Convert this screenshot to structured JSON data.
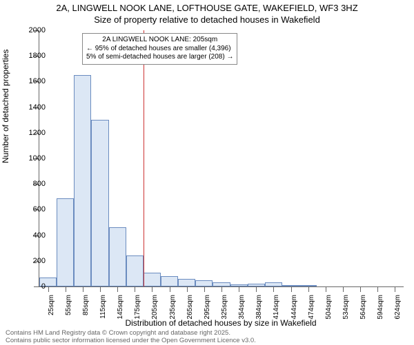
{
  "title_line1": "2A, LINGWELL NOOK LANE, LOFTHOUSE GATE, WAKEFIELD, WF3 3HZ",
  "title_line2": "Size of property relative to detached houses in Wakefield",
  "y_axis_label": "Number of detached properties",
  "x_axis_label": "Distribution of detached houses by size in Wakefield",
  "footer_line1": "Contains HM Land Registry data © Crown copyright and database right 2025.",
  "footer_line2": "Contains public sector information licensed under the Open Government Licence v3.0.",
  "chart": {
    "type": "histogram",
    "ylim": [
      0,
      2000
    ],
    "ytick_step": 200,
    "y_ticks": [
      0,
      200,
      400,
      600,
      800,
      1000,
      1200,
      1400,
      1600,
      1800,
      2000
    ],
    "x_categories": [
      "25sqm",
      "55sqm",
      "85sqm",
      "115sqm",
      "145sqm",
      "175sqm",
      "205sqm",
      "235sqm",
      "265sqm",
      "295sqm",
      "325sqm",
      "354sqm",
      "384sqm",
      "414sqm",
      "444sqm",
      "474sqm",
      "504sqm",
      "534sqm",
      "564sqm",
      "594sqm",
      "624sqm"
    ],
    "values": [
      70,
      690,
      1650,
      1300,
      460,
      240,
      110,
      80,
      60,
      50,
      30,
      15,
      20,
      30,
      5,
      5,
      0,
      0,
      0,
      0,
      0
    ],
    "bar_fill": "#dce7f5",
    "bar_border": "#6a8bbf",
    "background_color": "#ffffff",
    "axis_color": "#666666",
    "reference_line": {
      "at_category_index": 6,
      "color": "#cc3333"
    },
    "annotation": {
      "line1": "2A LINGWELL NOOK LANE: 205sqm",
      "line2": "← 95% of detached houses are smaller (4,396)",
      "line3": "5% of semi-detached houses are larger (208) →",
      "border_color": "#888888",
      "bg_color": "#ffffff",
      "fontsize": 10
    },
    "title_fontsize": 13,
    "label_fontsize": 12,
    "tick_fontsize": 11
  }
}
